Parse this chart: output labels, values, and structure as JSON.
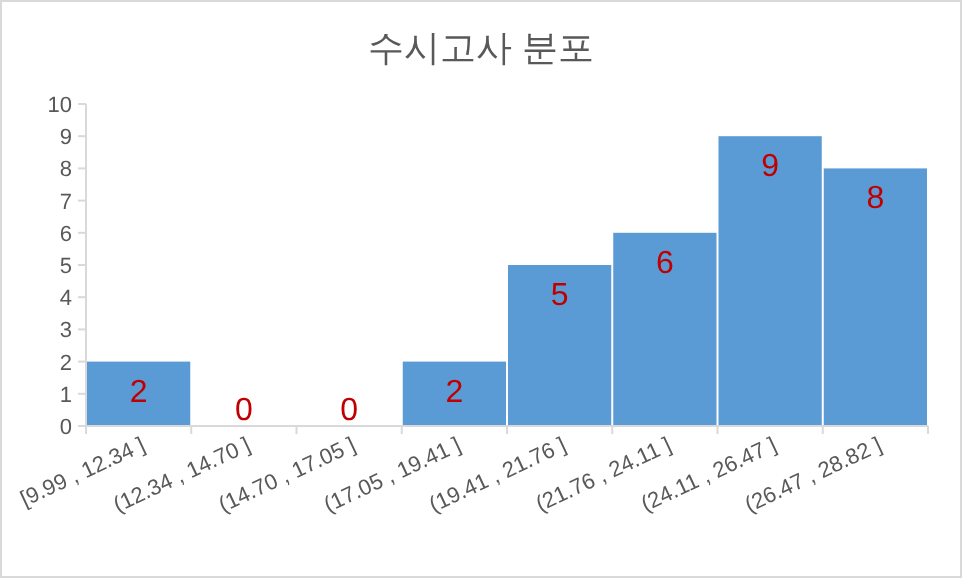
{
  "chart_data": {
    "type": "bar",
    "title": "수시고사 분포",
    "categories": [
      "[9.99 , 12.34 ]",
      "(12.34 , 14.70 ]",
      "(14.70 , 17.05 ]",
      "(17.05 , 19.41 ]",
      "(19.41 , 21.76 ]",
      "(21.76 , 24.11 ]",
      "(24.11 , 26.47 ]",
      "(26.47 , 28.82 ]"
    ],
    "values": [
      2,
      0,
      0,
      2,
      5,
      6,
      9,
      8
    ],
    "color": "#5b9bd5",
    "ylim": [
      0,
      10
    ],
    "yticks": [
      0,
      1,
      2,
      3,
      4,
      5,
      6,
      7,
      8,
      9,
      10
    ],
    "grid": false,
    "data_labels": true
  }
}
